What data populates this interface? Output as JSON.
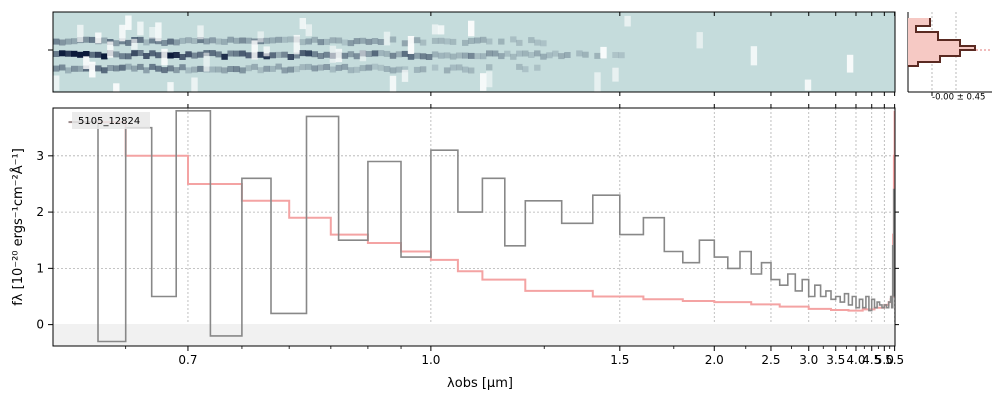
{
  "chart_data": [
    {
      "type": "heatmap",
      "panel": "2d-spectrum",
      "description_colors": {
        "background": "#c5dcdc",
        "dark": "#0b1a3a",
        "light": "#ffffff"
      },
      "bands": [
        {
          "role": "upper-trace",
          "y_frac": 0.38,
          "strength": 0.55
        },
        {
          "role": "main-trace",
          "y_frac": 0.55,
          "strength": 1.0
        },
        {
          "role": "lower-trace",
          "y_frac": 0.72,
          "strength": 0.5
        }
      ]
    },
    {
      "type": "line",
      "panel": "profile",
      "annotation": "-0.00 ± 0.45",
      "colors": {
        "line": "#5a2a22",
        "fill": "#f6c9c4",
        "center": "#e07a7a"
      }
    },
    {
      "type": "line",
      "panel": "1d-spectrum",
      "object_label": "5105_12824",
      "xlabel": "λobs [μm]",
      "ylabel": "fλ [10⁻²⁰ ergs⁻¹cm⁻²Å⁻¹]",
      "xlim": [
        0.6,
        5.52
      ],
      "ylim": [
        -0.38,
        3.85
      ],
      "x_scale": "reciprocal",
      "grid": true,
      "x_ticks": [
        {
          "value": 0.7,
          "label": "0.7"
        },
        {
          "value": 1.0,
          "label": "1.0"
        },
        {
          "value": 1.5,
          "label": "1.5"
        },
        {
          "value": 2.0,
          "label": "2.0"
        },
        {
          "value": 2.5,
          "label": "2.5"
        },
        {
          "value": 3.0,
          "label": "3.0"
        },
        {
          "value": 3.5,
          "label": "3.5"
        },
        {
          "value": 4.0,
          "label": "4.0"
        },
        {
          "value": 4.5,
          "label": "4.5"
        },
        {
          "value": 5.0,
          "label": "5.0"
        },
        {
          "value": 5.5,
          "label": "5.5"
        }
      ],
      "y_ticks": [
        {
          "value": 0,
          "label": "0"
        },
        {
          "value": 1,
          "label": "1"
        },
        {
          "value": 2,
          "label": "2"
        },
        {
          "value": 3,
          "label": "3"
        }
      ],
      "series": [
        {
          "role": "data",
          "color": "#888888",
          "x": [
            0.61,
            0.63,
            0.65,
            0.67,
            0.69,
            0.72,
            0.75,
            0.78,
            0.82,
            0.86,
            0.9,
            0.95,
            1.0,
            1.05,
            1.1,
            1.15,
            1.2,
            1.3,
            1.4,
            1.5,
            1.6,
            1.7,
            1.8,
            1.9,
            2.0,
            2.1,
            2.2,
            2.3,
            2.4,
            2.5,
            2.6,
            2.7,
            2.8,
            2.9,
            3.0,
            3.1,
            3.2,
            3.3,
            3.4,
            3.5,
            3.6,
            3.7,
            3.8,
            3.9,
            4.0,
            4.1,
            4.2,
            4.3,
            4.4,
            4.5,
            4.6,
            4.7,
            4.8,
            4.9,
            5.0,
            5.1,
            5.2,
            5.3,
            5.35,
            5.4,
            5.45,
            5.48
          ],
          "y": [
            3.6,
            -0.3,
            3.5,
            0.5,
            3.8,
            -0.2,
            2.6,
            0.2,
            3.7,
            1.5,
            2.9,
            1.2,
            3.1,
            2.0,
            2.6,
            1.4,
            2.2,
            1.8,
            2.3,
            1.6,
            1.9,
            1.3,
            1.1,
            1.5,
            1.2,
            1.0,
            1.3,
            0.9,
            1.1,
            0.8,
            0.7,
            0.9,
            0.6,
            0.8,
            0.5,
            0.7,
            0.5,
            0.6,
            0.45,
            0.5,
            0.4,
            0.55,
            0.35,
            0.5,
            0.3,
            0.45,
            0.3,
            0.5,
            0.25,
            0.45,
            0.3,
            0.4,
            0.35,
            0.3,
            0.35,
            0.3,
            0.4,
            0.5,
            0.3,
            1.4,
            2.4,
            0.5
          ]
        },
        {
          "role": "model",
          "color": "#f4a3a3",
          "x": [
            0.61,
            0.65,
            0.7,
            0.75,
            0.8,
            0.85,
            0.9,
            0.95,
            1.0,
            1.05,
            1.1,
            1.2,
            1.4,
            1.6,
            1.8,
            2.0,
            2.3,
            2.6,
            3.0,
            3.4,
            3.8,
            4.2,
            4.6,
            5.0,
            5.2,
            5.3,
            5.38,
            5.42,
            5.46,
            5.5
          ],
          "y": [
            3.6,
            3.0,
            2.5,
            2.2,
            1.9,
            1.6,
            1.45,
            1.3,
            1.15,
            0.95,
            0.8,
            0.6,
            0.5,
            0.45,
            0.42,
            0.4,
            0.36,
            0.32,
            0.28,
            0.26,
            0.25,
            0.27,
            0.3,
            0.35,
            0.4,
            0.45,
            0.5,
            1.6,
            3.0,
            3.8
          ]
        }
      ]
    }
  ]
}
